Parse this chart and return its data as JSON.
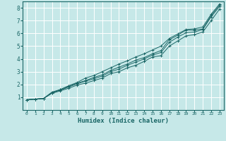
{
  "xlabel": "Humidex (Indice chaleur)",
  "ylabel": "",
  "xlim": [
    -0.5,
    23.5
  ],
  "ylim": [
    0,
    8.5
  ],
  "xticks": [
    0,
    1,
    2,
    3,
    4,
    5,
    6,
    7,
    8,
    9,
    10,
    11,
    12,
    13,
    14,
    15,
    16,
    17,
    18,
    19,
    20,
    21,
    22,
    23
  ],
  "yticks": [
    1,
    2,
    3,
    4,
    5,
    6,
    7,
    8
  ],
  "background_color": "#c6e8e8",
  "grid_color": "#ffffff",
  "line_color": "#1a6666",
  "lines": [
    {
      "x": [
        0,
        1,
        2,
        3,
        4,
        5,
        6,
        7,
        8,
        9,
        10,
        11,
        12,
        13,
        14,
        15,
        16,
        17,
        18,
        19,
        20,
        21,
        22,
        23
      ],
      "y": [
        0.8,
        0.85,
        0.9,
        1.35,
        1.55,
        1.8,
        2.05,
        2.25,
        2.45,
        2.65,
        3.0,
        3.2,
        3.5,
        3.75,
        4.0,
        4.3,
        4.5,
        5.3,
        5.7,
        6.05,
        6.1,
        6.3,
        7.3,
        8.1
      ]
    },
    {
      "x": [
        0,
        1,
        2,
        3,
        4,
        5,
        6,
        7,
        8,
        9,
        10,
        11,
        12,
        13,
        14,
        15,
        16,
        17,
        18,
        19,
        20,
        21,
        22,
        23
      ],
      "y": [
        0.8,
        0.85,
        0.9,
        1.35,
        1.6,
        1.85,
        2.1,
        2.3,
        2.55,
        2.75,
        3.1,
        3.35,
        3.6,
        3.9,
        4.1,
        4.4,
        4.65,
        5.5,
        5.85,
        6.25,
        6.25,
        6.35,
        7.4,
        8.2
      ]
    },
    {
      "x": [
        0,
        1,
        2,
        3,
        4,
        5,
        6,
        7,
        8,
        9,
        10,
        11,
        12,
        13,
        14,
        15,
        16,
        17,
        18,
        19,
        20,
        21,
        22,
        23
      ],
      "y": [
        0.8,
        0.85,
        0.9,
        1.4,
        1.6,
        1.9,
        2.15,
        2.5,
        2.7,
        3.0,
        3.3,
        3.6,
        3.85,
        4.15,
        4.4,
        4.7,
        5.0,
        5.6,
        5.95,
        6.3,
        6.35,
        6.5,
        7.5,
        8.3
      ]
    },
    {
      "x": [
        0,
        1,
        2,
        3,
        4,
        5,
        6,
        7,
        8,
        9,
        10,
        11,
        12,
        13,
        14,
        15,
        16,
        17,
        18,
        19,
        20,
        21,
        22,
        23
      ],
      "y": [
        0.8,
        0.85,
        0.9,
        1.3,
        1.5,
        1.7,
        1.95,
        2.1,
        2.3,
        2.5,
        2.85,
        3.0,
        3.3,
        3.5,
        3.8,
        4.15,
        4.25,
        5.0,
        5.4,
        5.8,
        5.9,
        6.1,
        7.0,
        7.9
      ]
    }
  ]
}
